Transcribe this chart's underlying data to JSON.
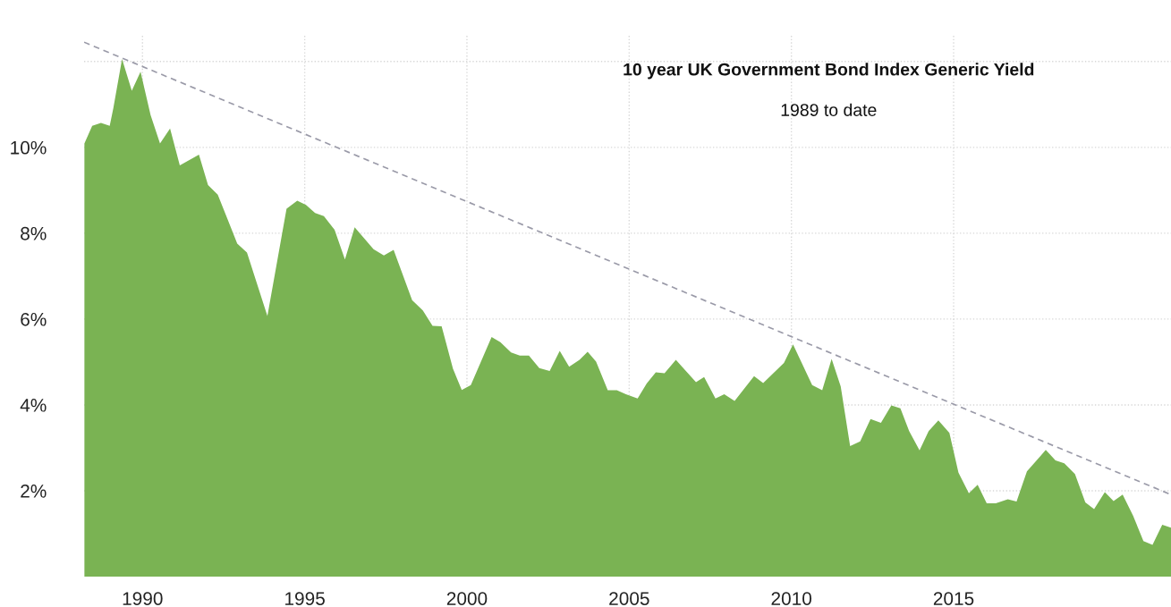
{
  "chart_data": {
    "type": "area",
    "title": "10 year UK Government Bond Index Generic Yield",
    "subtitle": "1989 to date",
    "x": [
      1988.21,
      1988.45,
      1988.72,
      1988.99,
      1989.1,
      1989.37,
      1989.67,
      1989.94,
      1990.25,
      1990.54,
      1990.85,
      1991.15,
      1991.74,
      1992.02,
      1992.32,
      1992.92,
      1993.22,
      1993.85,
      1994.44,
      1994.77,
      1995.04,
      1995.32,
      1995.59,
      1995.92,
      1996.24,
      1996.54,
      1997.12,
      1997.44,
      1997.74,
      1998.31,
      1998.64,
      1998.94,
      1999.22,
      1999.57,
      1999.84,
      2000.12,
      2000.76,
      2001.03,
      2001.36,
      2001.63,
      2001.91,
      2002.23,
      2002.55,
      2002.86,
      2003.15,
      2003.47,
      2003.72,
      2003.98,
      2004.34,
      2004.62,
      2004.9,
      2005.26,
      2005.54,
      2005.82,
      2006.09,
      2006.44,
      2007.06,
      2007.31,
      2007.66,
      2007.93,
      2008.25,
      2008.85,
      2009.13,
      2009.77,
      2010.05,
      2010.64,
      2010.95,
      2011.24,
      2011.52,
      2011.81,
      2012.12,
      2012.44,
      2012.76,
      2013.08,
      2013.36,
      2013.63,
      2013.95,
      2014.23,
      2014.53,
      2014.87,
      2015.15,
      2015.47,
      2015.74,
      2016.02,
      2016.3,
      2016.67,
      2016.94,
      2017.26,
      2017.84,
      2018.14,
      2018.41,
      2018.74,
      2019.06,
      2019.33,
      2019.66,
      2019.93,
      2020.21,
      2020.53,
      2020.85,
      2021.13,
      2021.43,
      2021.7
    ],
    "series": [
      {
        "color": "#7ab353",
        "values": [
          10.09,
          10.5,
          10.57,
          10.5,
          10.91,
          12.06,
          11.32,
          11.76,
          10.75,
          10.09,
          10.44,
          9.58,
          9.83,
          9.12,
          8.9,
          7.76,
          7.55,
          6.07,
          8.57,
          8.76,
          8.66,
          8.47,
          8.4,
          8.08,
          7.39,
          8.14,
          7.63,
          7.48,
          7.61,
          6.44,
          6.2,
          5.84,
          5.83,
          4.84,
          4.35,
          4.46,
          5.58,
          5.46,
          5.22,
          5.15,
          5.15,
          4.86,
          4.79,
          5.26,
          4.89,
          5.05,
          5.24,
          5.01,
          4.34,
          4.34,
          4.25,
          4.15,
          4.5,
          4.76,
          4.74,
          5.05,
          4.53,
          4.65,
          4.15,
          4.25,
          4.09,
          4.67,
          4.51,
          4.98,
          5.41,
          4.46,
          4.34,
          5.07,
          4.43,
          3.04,
          3.15,
          3.67,
          3.58,
          3.99,
          3.92,
          3.39,
          2.94,
          3.39,
          3.64,
          3.35,
          2.42,
          1.94,
          2.14,
          1.71,
          1.71,
          1.8,
          1.75,
          2.45,
          2.95,
          2.71,
          2.64,
          2.39,
          1.73,
          1.57,
          1.97,
          1.76,
          1.91,
          1.42,
          0.83,
          0.74,
          1.21,
          1.14
        ]
      },
      {
        "type": "line",
        "color": "#9a9aa8",
        "line_style": "dashed",
        "x": [
          1988.2,
          2021.7
        ],
        "values": [
          12.45,
          1.91
        ]
      }
    ],
    "xlim": [
      1988.2,
      2021.7
    ],
    "ylim": [
      0,
      12.6
    ],
    "xticks": [
      1990,
      1995,
      2000,
      2005,
      2010,
      2015
    ],
    "yticks": [
      {
        "value": 2,
        "label": "2%"
      },
      {
        "value": 4,
        "label": "4%"
      },
      {
        "value": 6,
        "label": "6%"
      },
      {
        "value": 8,
        "label": "8%"
      },
      {
        "value": 10,
        "label": "10%"
      },
      {
        "value": 12,
        "label": null
      }
    ],
    "grid": true
  }
}
